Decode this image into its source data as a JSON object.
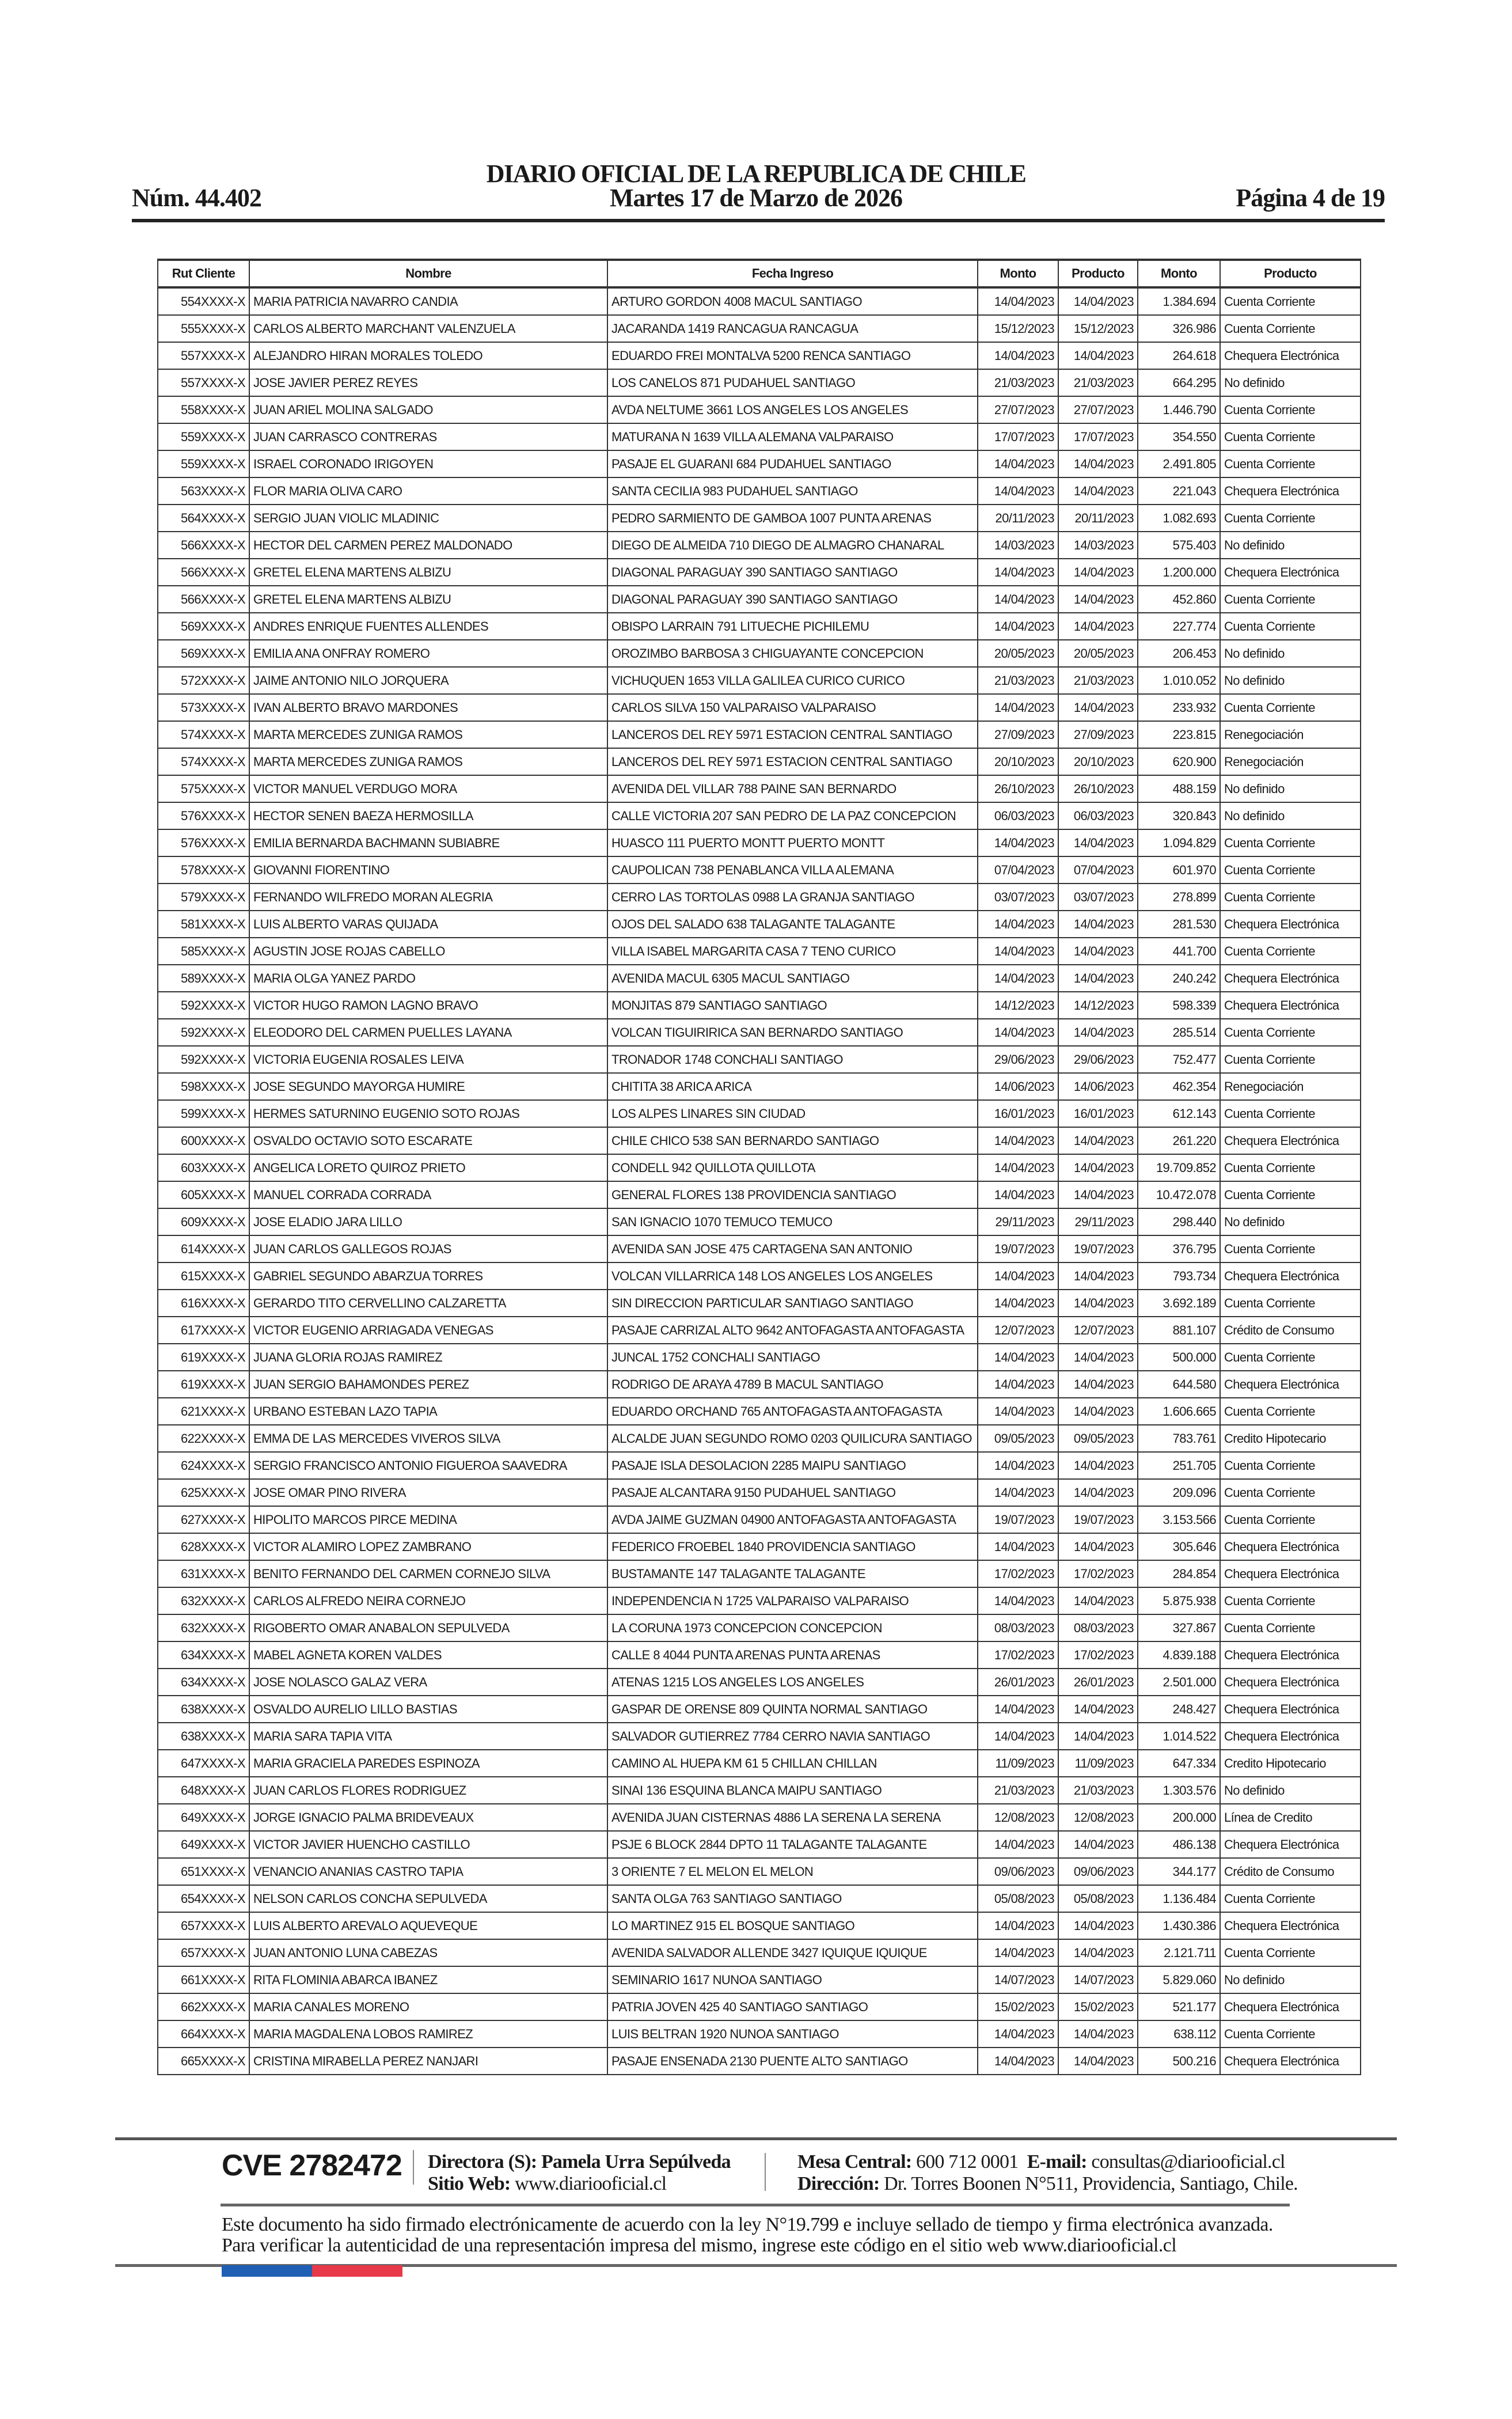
{
  "header": {
    "title": "DIARIO OFICIAL DE LA REPUBLICA DE CHILE",
    "issue": "Núm. 44.402",
    "date": "Martes 17 de Marzo de 2026",
    "page": "Página 4 de 19"
  },
  "table": {
    "columns": [
      "Rut Cliente",
      "Nombre",
      "Fecha Ingreso",
      "Monto",
      "Producto",
      "Monto",
      "Producto"
    ],
    "rows": [
      [
        "554XXXX-X",
        "MARIA PATRICIA NAVARRO CANDIA",
        "ARTURO GORDON 4008 MACUL SANTIAGO",
        "14/04/2023",
        "14/04/2023",
        "1.384.694",
        "Cuenta Corriente"
      ],
      [
        "555XXXX-X",
        "CARLOS ALBERTO MARCHANT VALENZUELA",
        "JACARANDA 1419 RANCAGUA RANCAGUA",
        "15/12/2023",
        "15/12/2023",
        "326.986",
        "Cuenta Corriente"
      ],
      [
        "557XXXX-X",
        "ALEJANDRO HIRAN MORALES TOLEDO",
        "EDUARDO FREI MONTALVA 5200 RENCA SANTIAGO",
        "14/04/2023",
        "14/04/2023",
        "264.618",
        "Chequera Electrónica"
      ],
      [
        "557XXXX-X",
        "JOSE JAVIER PEREZ REYES",
        "LOS CANELOS 871 PUDAHUEL SANTIAGO",
        "21/03/2023",
        "21/03/2023",
        "664.295",
        "No definido"
      ],
      [
        "558XXXX-X",
        "JUAN ARIEL MOLINA SALGADO",
        "AVDA NELTUME 3661 LOS ANGELES LOS ANGELES",
        "27/07/2023",
        "27/07/2023",
        "1.446.790",
        "Cuenta Corriente"
      ],
      [
        "559XXXX-X",
        "JUAN CARRASCO CONTRERAS",
        "MATURANA N 1639 VILLA ALEMANA VALPARAISO",
        "17/07/2023",
        "17/07/2023",
        "354.550",
        "Cuenta Corriente"
      ],
      [
        "559XXXX-X",
        "ISRAEL CORONADO IRIGOYEN",
        "PASAJE EL GUARANI 684 PUDAHUEL SANTIAGO",
        "14/04/2023",
        "14/04/2023",
        "2.491.805",
        "Cuenta Corriente"
      ],
      [
        "563XXXX-X",
        "FLOR MARIA OLIVA CARO",
        "SANTA CECILIA 983 PUDAHUEL SANTIAGO",
        "14/04/2023",
        "14/04/2023",
        "221.043",
        "Chequera Electrónica"
      ],
      [
        "564XXXX-X",
        "SERGIO JUAN VIOLIC MLADINIC",
        "PEDRO SARMIENTO DE GAMBOA 1007 PUNTA ARENAS",
        "20/11/2023",
        "20/11/2023",
        "1.082.693",
        "Cuenta Corriente"
      ],
      [
        "566XXXX-X",
        "HECTOR DEL CARMEN PEREZ MALDONADO",
        "DIEGO DE ALMEIDA 710 DIEGO DE ALMAGRO CHANARAL",
        "14/03/2023",
        "14/03/2023",
        "575.403",
        "No definido"
      ],
      [
        "566XXXX-X",
        "GRETEL ELENA MARTENS ALBIZU",
        "DIAGONAL PARAGUAY 390 SANTIAGO SANTIAGO",
        "14/04/2023",
        "14/04/2023",
        "1.200.000",
        "Chequera Electrónica"
      ],
      [
        "566XXXX-X",
        "GRETEL ELENA MARTENS ALBIZU",
        "DIAGONAL PARAGUAY 390 SANTIAGO SANTIAGO",
        "14/04/2023",
        "14/04/2023",
        "452.860",
        "Cuenta Corriente"
      ],
      [
        "569XXXX-X",
        "ANDRES ENRIQUE FUENTES ALLENDES",
        "OBISPO LARRAIN 791 LITUECHE PICHILEMU",
        "14/04/2023",
        "14/04/2023",
        "227.774",
        "Cuenta Corriente"
      ],
      [
        "569XXXX-X",
        "EMILIA ANA ONFRAY ROMERO",
        "OROZIMBO BARBOSA 3 CHIGUAYANTE CONCEPCION",
        "20/05/2023",
        "20/05/2023",
        "206.453",
        "No definido"
      ],
      [
        "572XXXX-X",
        "JAIME ANTONIO NILO JORQUERA",
        "VICHUQUEN 1653 VILLA GALILEA CURICO CURICO",
        "21/03/2023",
        "21/03/2023",
        "1.010.052",
        "No definido"
      ],
      [
        "573XXXX-X",
        "IVAN ALBERTO BRAVO MARDONES",
        "CARLOS SILVA 150 VALPARAISO VALPARAISO",
        "14/04/2023",
        "14/04/2023",
        "233.932",
        "Cuenta Corriente"
      ],
      [
        "574XXXX-X",
        "MARTA MERCEDES ZUNIGA RAMOS",
        "LANCEROS DEL REY 5971 ESTACION CENTRAL SANTIAGO",
        "27/09/2023",
        "27/09/2023",
        "223.815",
        "Renegociación"
      ],
      [
        "574XXXX-X",
        "MARTA MERCEDES ZUNIGA RAMOS",
        "LANCEROS DEL REY 5971 ESTACION CENTRAL SANTIAGO",
        "20/10/2023",
        "20/10/2023",
        "620.900",
        "Renegociación"
      ],
      [
        "575XXXX-X",
        "VICTOR MANUEL VERDUGO MORA",
        "AVENIDA DEL VILLAR 788 PAINE SAN BERNARDO",
        "26/10/2023",
        "26/10/2023",
        "488.159",
        "No definido"
      ],
      [
        "576XXXX-X",
        "HECTOR SENEN BAEZA HERMOSILLA",
        "CALLE VICTORIA 207 SAN PEDRO DE LA PAZ CONCEPCION",
        "06/03/2023",
        "06/03/2023",
        "320.843",
        "No definido"
      ],
      [
        "576XXXX-X",
        "EMILIA BERNARDA BACHMANN SUBIABRE",
        "HUASCO 111 PUERTO MONTT PUERTO MONTT",
        "14/04/2023",
        "14/04/2023",
        "1.094.829",
        "Cuenta Corriente"
      ],
      [
        "578XXXX-X",
        "GIOVANNI FIORENTINO",
        "CAUPOLICAN 738 PENABLANCA VILLA ALEMANA",
        "07/04/2023",
        "07/04/2023",
        "601.970",
        "Cuenta Corriente"
      ],
      [
        "579XXXX-X",
        "FERNANDO WILFREDO MORAN ALEGRIA",
        "CERRO LAS TORTOLAS 0988 LA GRANJA SANTIAGO",
        "03/07/2023",
        "03/07/2023",
        "278.899",
        "Cuenta Corriente"
      ],
      [
        "581XXXX-X",
        "LUIS ALBERTO VARAS QUIJADA",
        "OJOS DEL SALADO 638 TALAGANTE TALAGANTE",
        "14/04/2023",
        "14/04/2023",
        "281.530",
        "Chequera Electrónica"
      ],
      [
        "585XXXX-X",
        "AGUSTIN JOSE ROJAS CABELLO",
        "VILLA ISABEL MARGARITA CASA 7 TENO CURICO",
        "14/04/2023",
        "14/04/2023",
        "441.700",
        "Cuenta Corriente"
      ],
      [
        "589XXXX-X",
        "MARIA OLGA YANEZ PARDO",
        "AVENIDA MACUL 6305 MACUL SANTIAGO",
        "14/04/2023",
        "14/04/2023",
        "240.242",
        "Chequera Electrónica"
      ],
      [
        "592XXXX-X",
        "VICTOR HUGO RAMON LAGNO BRAVO",
        "MONJITAS 879 SANTIAGO SANTIAGO",
        "14/12/2023",
        "14/12/2023",
        "598.339",
        "Chequera Electrónica"
      ],
      [
        "592XXXX-X",
        "ELEODORO DEL CARMEN PUELLES LAYANA",
        "VOLCAN TIGUIRIRICA SAN BERNARDO SANTIAGO",
        "14/04/2023",
        "14/04/2023",
        "285.514",
        "Cuenta Corriente"
      ],
      [
        "592XXXX-X",
        "VICTORIA EUGENIA ROSALES LEIVA",
        "TRONADOR 1748 CONCHALI SANTIAGO",
        "29/06/2023",
        "29/06/2023",
        "752.477",
        "Cuenta Corriente"
      ],
      [
        "598XXXX-X",
        "JOSE SEGUNDO MAYORGA HUMIRE",
        "CHITITA 38 ARICA ARICA",
        "14/06/2023",
        "14/06/2023",
        "462.354",
        "Renegociación"
      ],
      [
        "599XXXX-X",
        "HERMES SATURNINO EUGENIO SOTO ROJAS",
        "LOS ALPES LINARES SIN CIUDAD",
        "16/01/2023",
        "16/01/2023",
        "612.143",
        "Cuenta Corriente"
      ],
      [
        "600XXXX-X",
        "OSVALDO OCTAVIO SOTO ESCARATE",
        "CHILE CHICO 538 SAN BERNARDO SANTIAGO",
        "14/04/2023",
        "14/04/2023",
        "261.220",
        "Chequera Electrónica"
      ],
      [
        "603XXXX-X",
        "ANGELICA LORETO QUIROZ PRIETO",
        "CONDELL 942 QUILLOTA QUILLOTA",
        "14/04/2023",
        "14/04/2023",
        "19.709.852",
        "Cuenta Corriente"
      ],
      [
        "605XXXX-X",
        "MANUEL CORRADA CORRADA",
        "GENERAL FLORES 138 PROVIDENCIA SANTIAGO",
        "14/04/2023",
        "14/04/2023",
        "10.472.078",
        "Cuenta Corriente"
      ],
      [
        "609XXXX-X",
        "JOSE ELADIO JARA LILLO",
        "SAN IGNACIO 1070 TEMUCO TEMUCO",
        "29/11/2023",
        "29/11/2023",
        "298.440",
        "No definido"
      ],
      [
        "614XXXX-X",
        "JUAN CARLOS GALLEGOS ROJAS",
        "AVENIDA SAN JOSE 475 CARTAGENA SAN ANTONIO",
        "19/07/2023",
        "19/07/2023",
        "376.795",
        "Cuenta Corriente"
      ],
      [
        "615XXXX-X",
        "GABRIEL SEGUNDO ABARZUA TORRES",
        "VOLCAN VILLARRICA 148 LOS ANGELES LOS ANGELES",
        "14/04/2023",
        "14/04/2023",
        "793.734",
        "Chequera Electrónica"
      ],
      [
        "616XXXX-X",
        "GERARDO TITO CERVELLINO CALZARETTA",
        "SIN DIRECCION PARTICULAR SANTIAGO SANTIAGO",
        "14/04/2023",
        "14/04/2023",
        "3.692.189",
        "Cuenta Corriente"
      ],
      [
        "617XXXX-X",
        "VICTOR EUGENIO ARRIAGADA VENEGAS",
        "PASAJE CARRIZAL ALTO 9642 ANTOFAGASTA ANTOFAGASTA",
        "12/07/2023",
        "12/07/2023",
        "881.107",
        "Crédito de Consumo"
      ],
      [
        "619XXXX-X",
        "JUANA GLORIA ROJAS RAMIREZ",
        "JUNCAL 1752 CONCHALI SANTIAGO",
        "14/04/2023",
        "14/04/2023",
        "500.000",
        "Cuenta Corriente"
      ],
      [
        "619XXXX-X",
        "JUAN SERGIO BAHAMONDES PEREZ",
        "RODRIGO DE ARAYA 4789 B MACUL SANTIAGO",
        "14/04/2023",
        "14/04/2023",
        "644.580",
        "Chequera Electrónica"
      ],
      [
        "621XXXX-X",
        "URBANO ESTEBAN LAZO TAPIA",
        "EDUARDO ORCHAND 765 ANTOFAGASTA ANTOFAGASTA",
        "14/04/2023",
        "14/04/2023",
        "1.606.665",
        "Cuenta Corriente"
      ],
      [
        "622XXXX-X",
        "EMMA DE LAS MERCEDES VIVEROS SILVA",
        "ALCALDE JUAN SEGUNDO ROMO 0203 QUILICURA SANTIAGO",
        "09/05/2023",
        "09/05/2023",
        "783.761",
        "Credito Hipotecario"
      ],
      [
        "624XXXX-X",
        "SERGIO FRANCISCO ANTONIO FIGUEROA SAAVEDRA",
        "PASAJE ISLA DESOLACION 2285 MAIPU SANTIAGO",
        "14/04/2023",
        "14/04/2023",
        "251.705",
        "Cuenta Corriente"
      ],
      [
        "625XXXX-X",
        "JOSE OMAR PINO RIVERA",
        "PASAJE ALCANTARA 9150 PUDAHUEL SANTIAGO",
        "14/04/2023",
        "14/04/2023",
        "209.096",
        "Cuenta Corriente"
      ],
      [
        "627XXXX-X",
        "HIPOLITO MARCOS PIRCE MEDINA",
        "AVDA JAIME GUZMAN 04900 ANTOFAGASTA ANTOFAGASTA",
        "19/07/2023",
        "19/07/2023",
        "3.153.566",
        "Cuenta Corriente"
      ],
      [
        "628XXXX-X",
        "VICTOR ALAMIRO LOPEZ ZAMBRANO",
        "FEDERICO FROEBEL 1840 PROVIDENCIA SANTIAGO",
        "14/04/2023",
        "14/04/2023",
        "305.646",
        "Chequera Electrónica"
      ],
      [
        "631XXXX-X",
        "BENITO FERNANDO DEL CARMEN CORNEJO SILVA",
        "BUSTAMANTE 147 TALAGANTE TALAGANTE",
        "17/02/2023",
        "17/02/2023",
        "284.854",
        "Chequera Electrónica"
      ],
      [
        "632XXXX-X",
        "CARLOS ALFREDO NEIRA CORNEJO",
        "INDEPENDENCIA N 1725 VALPARAISO VALPARAISO",
        "14/04/2023",
        "14/04/2023",
        "5.875.938",
        "Cuenta Corriente"
      ],
      [
        "632XXXX-X",
        "RIGOBERTO OMAR ANABALON SEPULVEDA",
        "LA CORUNA 1973 CONCEPCION CONCEPCION",
        "08/03/2023",
        "08/03/2023",
        "327.867",
        "Cuenta Corriente"
      ],
      [
        "634XXXX-X",
        "MABEL AGNETA KOREN VALDES",
        "CALLE 8 4044 PUNTA ARENAS PUNTA ARENAS",
        "17/02/2023",
        "17/02/2023",
        "4.839.188",
        "Chequera Electrónica"
      ],
      [
        "634XXXX-X",
        "JOSE NOLASCO GALAZ VERA",
        "ATENAS 1215 LOS ANGELES LOS ANGELES",
        "26/01/2023",
        "26/01/2023",
        "2.501.000",
        "Chequera Electrónica"
      ],
      [
        "638XXXX-X",
        "OSVALDO AURELIO LILLO BASTIAS",
        "GASPAR DE ORENSE 809 QUINTA NORMAL SANTIAGO",
        "14/04/2023",
        "14/04/2023",
        "248.427",
        "Chequera Electrónica"
      ],
      [
        "638XXXX-X",
        "MARIA SARA TAPIA VITA",
        "SALVADOR GUTIERREZ 7784 CERRO NAVIA SANTIAGO",
        "14/04/2023",
        "14/04/2023",
        "1.014.522",
        "Chequera Electrónica"
      ],
      [
        "647XXXX-X",
        "MARIA GRACIELA PAREDES ESPINOZA",
        "CAMINO AL HUEPA KM 61 5 CHILLAN CHILLAN",
        "11/09/2023",
        "11/09/2023",
        "647.334",
        "Credito Hipotecario"
      ],
      [
        "648XXXX-X",
        "JUAN CARLOS FLORES RODRIGUEZ",
        "SINAI 136 ESQUINA BLANCA MAIPU SANTIAGO",
        "21/03/2023",
        "21/03/2023",
        "1.303.576",
        "No definido"
      ],
      [
        "649XXXX-X",
        "JORGE IGNACIO PALMA BRIDEVEAUX",
        "AVENIDA JUAN CISTERNAS 4886 LA SERENA LA SERENA",
        "12/08/2023",
        "12/08/2023",
        "200.000",
        "Línea de Credito"
      ],
      [
        "649XXXX-X",
        "VICTOR JAVIER HUENCHO CASTILLO",
        "PSJE 6 BLOCK 2844 DPTO 11 TALAGANTE TALAGANTE",
        "14/04/2023",
        "14/04/2023",
        "486.138",
        "Chequera Electrónica"
      ],
      [
        "651XXXX-X",
        "VENANCIO ANANIAS CASTRO TAPIA",
        "3 ORIENTE 7 EL MELON EL MELON",
        "09/06/2023",
        "09/06/2023",
        "344.177",
        "Crédito de Consumo"
      ],
      [
        "654XXXX-X",
        "NELSON CARLOS CONCHA SEPULVEDA",
        "SANTA OLGA 763 SANTIAGO SANTIAGO",
        "05/08/2023",
        "05/08/2023",
        "1.136.484",
        "Cuenta Corriente"
      ],
      [
        "657XXXX-X",
        "LUIS ALBERTO AREVALO AQUEVEQUE",
        "LO MARTINEZ 915 EL BOSQUE SANTIAGO",
        "14/04/2023",
        "14/04/2023",
        "1.430.386",
        "Chequera Electrónica"
      ],
      [
        "657XXXX-X",
        "JUAN ANTONIO LUNA CABEZAS",
        "AVENIDA SALVADOR ALLENDE 3427 IQUIQUE IQUIQUE",
        "14/04/2023",
        "14/04/2023",
        "2.121.711",
        "Cuenta Corriente"
      ],
      [
        "661XXXX-X",
        "RITA FLOMINIA ABARCA IBANEZ",
        "SEMINARIO 1617 NUNOA SANTIAGO",
        "14/07/2023",
        "14/07/2023",
        "5.829.060",
        "No definido"
      ],
      [
        "662XXXX-X",
        "MARIA CANALES MORENO",
        "PATRIA JOVEN 425 40 SANTIAGO SANTIAGO",
        "15/02/2023",
        "15/02/2023",
        "521.177",
        "Chequera Electrónica"
      ],
      [
        "664XXXX-X",
        "MARIA MAGDALENA LOBOS RAMIREZ",
        "LUIS BELTRAN 1920 NUNOA SANTIAGO",
        "14/04/2023",
        "14/04/2023",
        "638.112",
        "Cuenta Corriente"
      ],
      [
        "665XXXX-X",
        "CRISTINA MIRABELLA PEREZ NANJARI",
        "PASAJE ENSENADA 2130 PUENTE ALTO SANTIAGO",
        "14/04/2023",
        "14/04/2023",
        "500.216",
        "Chequera Electrónica"
      ]
    ]
  },
  "footer": {
    "cve": "CVE 2782472",
    "director_label": "Directora (S):",
    "director": "Pamela Urra Sepúlveda",
    "web_label": "Sitio Web:",
    "web": "www.diariooficial.cl",
    "phone_label": "Mesa Central:",
    "phone": "600 712 0001",
    "email_label": "E-mail:",
    "email": "consultas@diariooficial.cl",
    "address_label": "Dirección:",
    "address": "Dr. Torres Boonen N°511, Providencia, Santiago, Chile.",
    "legal": "Este documento ha sido firmado electrónicamente de acuerdo con la ley N°19.799 e incluye sellado de tiempo y firma electrónica avanzada. Para verificar la autenticidad de una representación impresa del mismo, ingrese este código en el sitio web www.diariooficial.cl",
    "flag_colors": [
      "#1f5fb4",
      "#e8394a"
    ]
  }
}
